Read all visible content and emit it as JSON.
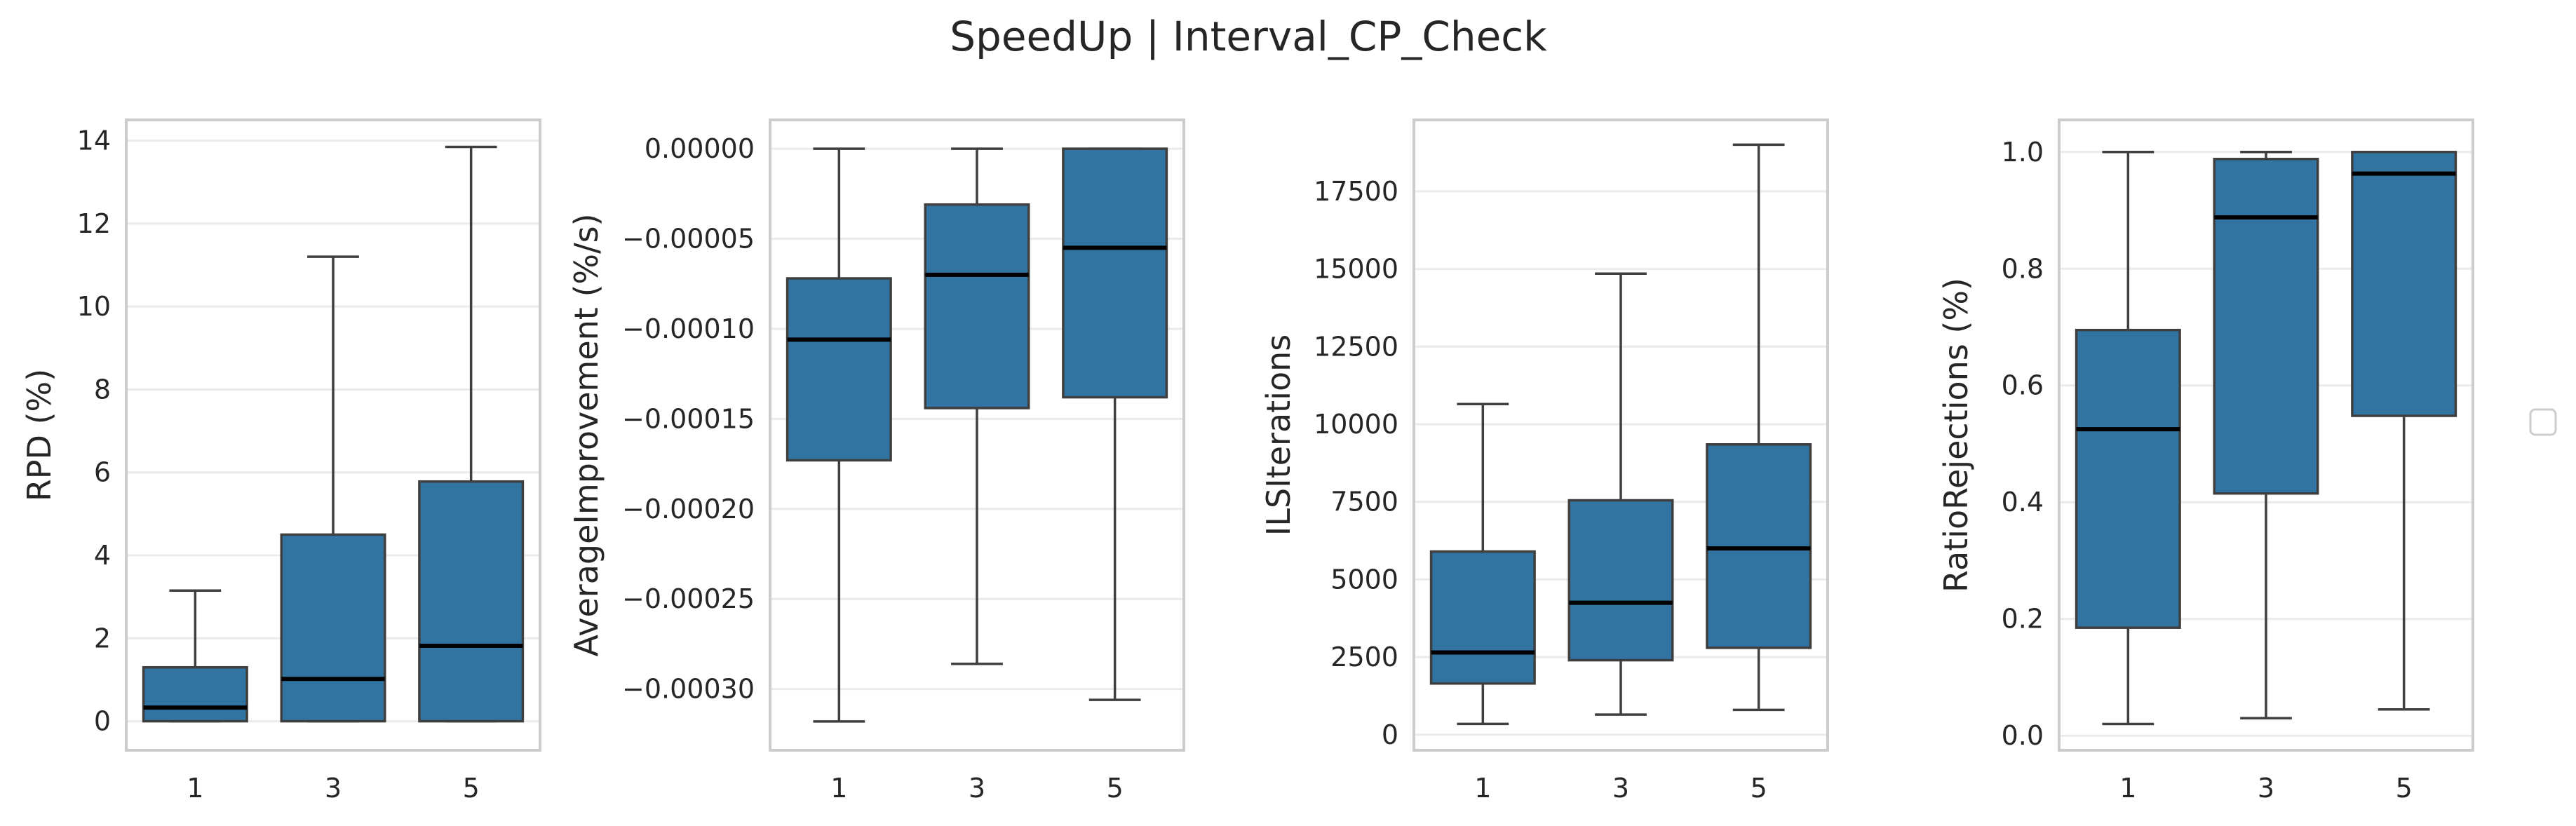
{
  "suptitle": "SpeedUp | Interval_CP_Check",
  "colors": {
    "box_fill": "#3274a1",
    "box_edge": "#3f3f3f",
    "median": "#000000",
    "frame": "#cccccc",
    "grid": "#ebebeb"
  },
  "chart_data": [
    {
      "type": "box",
      "ylabel": "RPD (%)",
      "categories": [
        "1",
        "3",
        "5"
      ],
      "ylim": [
        -0.7,
        14.5
      ],
      "yticks": [
        0,
        2,
        4,
        6,
        8,
        10,
        12,
        14
      ],
      "ytick_labels": [
        "0",
        "2",
        "4",
        "6",
        "8",
        "10",
        "12",
        "14"
      ],
      "boxes": [
        {
          "min": 0,
          "q1": 0,
          "median": 0.33,
          "q3": 1.3,
          "max": 3.15
        },
        {
          "min": 0,
          "q1": 0,
          "median": 1.02,
          "q3": 4.5,
          "max": 11.2
        },
        {
          "min": 0,
          "q1": 0,
          "median": 1.82,
          "q3": 5.78,
          "max": 13.85
        }
      ]
    },
    {
      "type": "box",
      "ylabel": "AverageImprovement (%/s)",
      "categories": [
        "1",
        "3",
        "5"
      ],
      "ylim": [
        -0.000334,
        1.6e-05
      ],
      "yticks": [
        0,
        -5e-05,
        -0.0001,
        -0.00015,
        -0.0002,
        -0.00025,
        -0.0003
      ],
      "ytick_labels": [
        "0.00000",
        "−0.00005",
        "−0.00010",
        "−0.00015",
        "−0.00020",
        "−0.00025",
        "−0.00030"
      ],
      "boxes": [
        {
          "min": -0.000318,
          "q1": -0.000173,
          "median": -0.000106,
          "q3": -7.2e-05,
          "max": 0
        },
        {
          "min": -0.000286,
          "q1": -0.000144,
          "median": -7e-05,
          "q3": -3.1e-05,
          "max": 0
        },
        {
          "min": -0.000306,
          "q1": -0.000138,
          "median": -5.5e-05,
          "q3": 0,
          "max": 0
        }
      ]
    },
    {
      "type": "box",
      "ylabel": "ILSIterations",
      "categories": [
        "1",
        "3",
        "5"
      ],
      "ylim": [
        -500,
        19800
      ],
      "yticks": [
        0,
        2500,
        5000,
        7500,
        10000,
        12500,
        15000,
        17500
      ],
      "ytick_labels": [
        "0",
        "2500",
        "5000",
        "7500",
        "10000",
        "12500",
        "15000",
        "17500"
      ],
      "boxes": [
        {
          "min": 350,
          "q1": 1650,
          "median": 2650,
          "q3": 5900,
          "max": 10650
        },
        {
          "min": 650,
          "q1": 2400,
          "median": 4250,
          "q3": 7550,
          "max": 14850
        },
        {
          "min": 800,
          "q1": 2800,
          "median": 6000,
          "q3": 9350,
          "max": 19000
        }
      ]
    },
    {
      "type": "box",
      "ylabel": "RatioRejections (%)",
      "categories": [
        "1",
        "3",
        "5"
      ],
      "ylim": [
        -0.025,
        1.055
      ],
      "yticks": [
        0,
        0.2,
        0.4,
        0.6,
        0.8,
        1.0
      ],
      "ytick_labels": [
        "0.0",
        "0.2",
        "0.4",
        "0.6",
        "0.8",
        "1.0"
      ],
      "boxes": [
        {
          "min": 0.02,
          "q1": 0.185,
          "median": 0.525,
          "q3": 0.695,
          "max": 1.0
        },
        {
          "min": 0.03,
          "q1": 0.415,
          "median": 0.888,
          "q3": 0.988,
          "max": 1.0
        },
        {
          "min": 0.045,
          "q1": 0.548,
          "median": 0.963,
          "q3": 1.0,
          "max": 1.0
        }
      ]
    }
  ]
}
